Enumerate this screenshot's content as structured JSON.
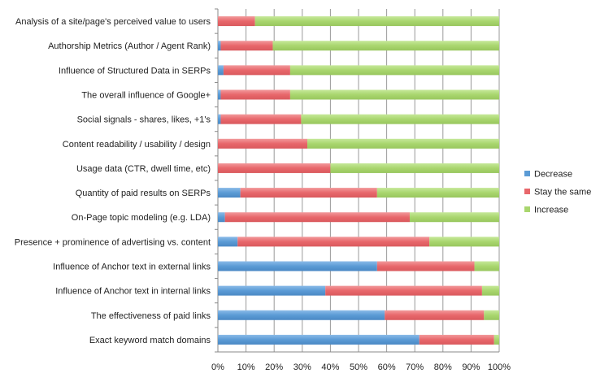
{
  "chart_data": {
    "type": "bar",
    "orientation": "horizontal",
    "stacked": "percent",
    "title": "",
    "xlabel": "",
    "ylabel": "",
    "xlim": [
      0,
      100
    ],
    "grid": true,
    "legend_position": "right",
    "x_ticks": [
      "0%",
      "10%",
      "20%",
      "30%",
      "40%",
      "50%",
      "60%",
      "70%",
      "80%",
      "90%",
      "100%"
    ],
    "categories": [
      "Analysis of a site/page's perceived value to users",
      "Authorship Metrics (Author / Agent Rank)",
      "Influence of Structured Data in SERPs",
      "The overall influence of Google+",
      "Social signals - shares, likes, +1's",
      "Content readability / usability / design",
      "Usage data (CTR, dwell time, etc)",
      "Quantity of paid results on SERPs",
      "On-Page topic modeling (e.g. LDA)",
      "Presence + prominence of advertising vs. content",
      "Influence of Anchor text in external links",
      "Influence of Anchor text in internal links",
      "The effectiveness of paid links",
      "Exact keyword match domains"
    ],
    "series": [
      {
        "name": "Decrease",
        "color": "#5b9bd5",
        "values": [
          0,
          1,
          2,
          1,
          1,
          0,
          0,
          8,
          2.5,
          7,
          56.6,
          38.2,
          59.3,
          71.6
        ]
      },
      {
        "name": "Stay the same",
        "color": "#e8676b",
        "values": [
          13.2,
          18.5,
          23.7,
          24.7,
          28.6,
          31.8,
          40,
          48.6,
          65.7,
          68.2,
          34.6,
          55.7,
          35.3,
          26.6
        ]
      },
      {
        "name": "Increase",
        "color": "#a9d66e",
        "values": [
          86.8,
          80.5,
          74.3,
          74.3,
          70.4,
          68.2,
          60,
          43.4,
          31.8,
          24.8,
          8.8,
          6.1,
          5.4,
          1.8
        ]
      }
    ]
  }
}
